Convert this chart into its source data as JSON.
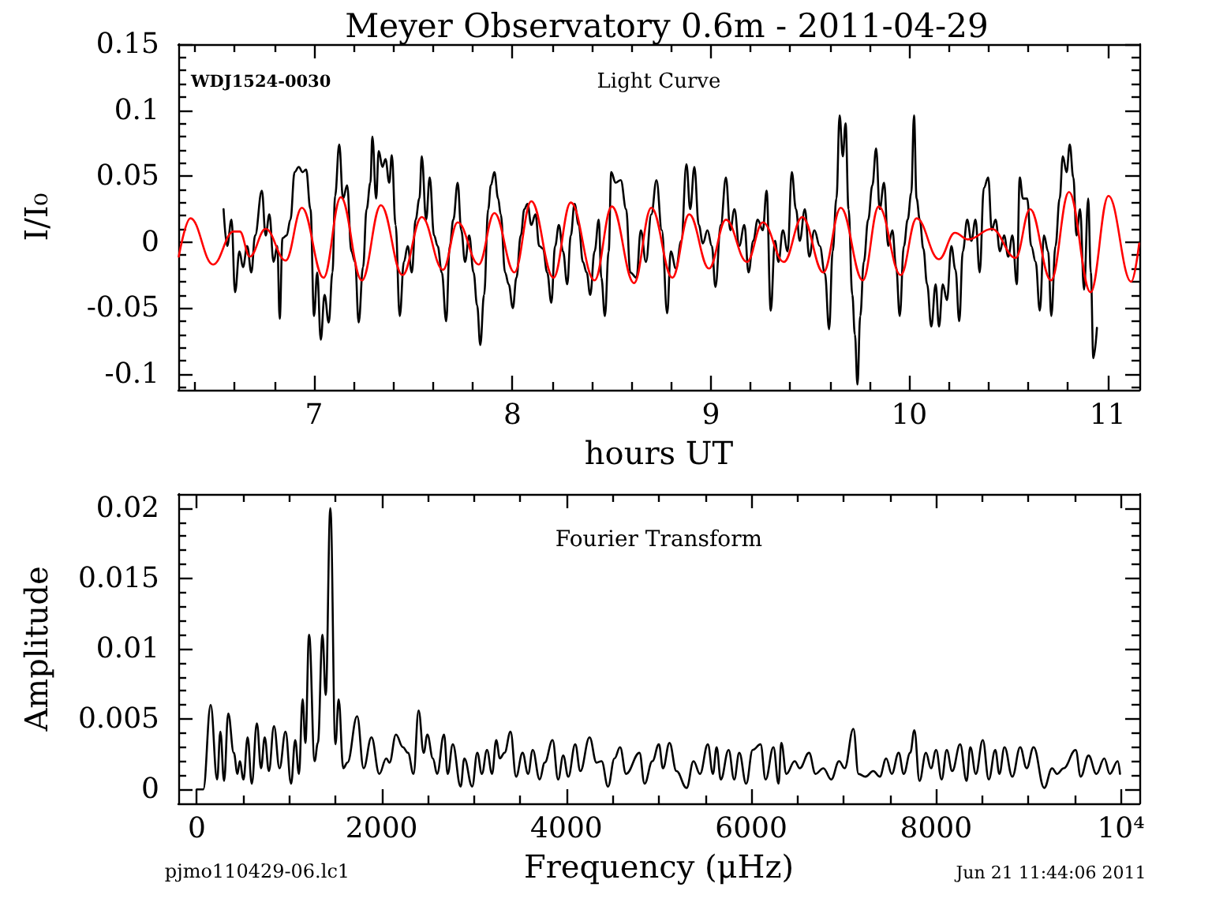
{
  "chart_data": [
    {
      "type": "line",
      "title": "Meyer Observatory 0.6m - 2011-04-29",
      "xlabel": "hours UT",
      "ylabel": "I/I₀",
      "annotations": [
        "WDJ1524-0030",
        "Light Curve"
      ],
      "xlim": [
        6.316,
        11.16
      ],
      "ylim": [
        -0.112,
        0.15
      ],
      "xticks": [
        {
          "value": 6.4,
          "label": null
        },
        {
          "value": 6.6,
          "label": null
        },
        {
          "value": 6.8,
          "label": null
        },
        7,
        {
          "value": 7.2,
          "label": null
        },
        {
          "value": 7.4,
          "label": null
        },
        {
          "value": 7.6,
          "label": null
        },
        {
          "value": 7.8,
          "label": null
        },
        8,
        {
          "value": 8.2,
          "label": null
        },
        {
          "value": 8.4,
          "label": null
        },
        {
          "value": 8.6,
          "label": null
        },
        {
          "value": 8.8,
          "label": null
        },
        9,
        {
          "value": 9.2,
          "label": null
        },
        {
          "value": 9.4,
          "label": null
        },
        {
          "value": 9.6,
          "label": null
        },
        {
          "value": 9.8,
          "label": null
        },
        10,
        {
          "value": 10.2,
          "label": null
        },
        {
          "value": 10.4,
          "label": null
        },
        {
          "value": 10.6,
          "label": null
        },
        {
          "value": 10.8,
          "label": null
        },
        11
      ],
      "yticks": [
        {
          "value": -0.11,
          "label": null
        },
        -0.1,
        {
          "value": -0.09,
          "label": null
        },
        {
          "value": -0.08,
          "label": null
        },
        {
          "value": -0.07,
          "label": null
        },
        {
          "value": -0.06,
          "label": null
        },
        -0.05,
        {
          "value": -0.04,
          "label": null
        },
        {
          "value": -0.03,
          "label": null
        },
        {
          "value": -0.02,
          "label": null
        },
        {
          "value": -0.01,
          "label": null
        },
        0,
        {
          "value": 0.01,
          "label": null
        },
        {
          "value": 0.02,
          "label": null
        },
        {
          "value": 0.03,
          "label": null
        },
        {
          "value": 0.04,
          "label": null
        },
        0.05,
        {
          "value": 0.06,
          "label": null
        },
        {
          "value": 0.07,
          "label": null
        },
        {
          "value": 0.08,
          "label": null
        },
        {
          "value": 0.09,
          "label": null
        },
        0.1,
        {
          "value": 0.11,
          "label": null
        },
        {
          "value": 0.12,
          "label": null
        },
        {
          "value": 0.13,
          "label": null
        },
        {
          "value": 0.14,
          "label": null
        },
        0.15
      ],
      "grid": false,
      "marker": "none",
      "series": [
        {
          "color": "#000000",
          "x": [
            6.544,
            6.562,
            6.584,
            6.602,
            6.624,
            6.642,
            6.663,
            6.684,
            6.703,
            6.737,
            6.756,
            6.775,
            6.796,
            6.815,
            6.827,
            6.841,
            6.862,
            6.881,
            6.902,
            6.923,
            6.942,
            6.96,
            6.982,
            7.0,
            7.016,
            7.034,
            7.053,
            7.074,
            7.093,
            7.106,
            7.127,
            7.146,
            7.167,
            7.188,
            7.207,
            7.225,
            7.247,
            7.265,
            7.284,
            7.294,
            7.313,
            7.326,
            7.345,
            7.36,
            7.379,
            7.392,
            7.411,
            7.432,
            7.453,
            7.472,
            7.493,
            7.512,
            7.531,
            7.543,
            7.565,
            7.583,
            7.605,
            7.623,
            7.644,
            7.666,
            7.684,
            7.702,
            7.724,
            7.742,
            7.761,
            7.782,
            7.804,
            7.822,
            7.838,
            7.857,
            7.878,
            7.891,
            7.909,
            7.928,
            7.941,
            7.963,
            7.981,
            8.002,
            8.02,
            8.042,
            8.06,
            8.076,
            8.095,
            8.116,
            8.135,
            8.154,
            8.175,
            8.196,
            8.215,
            8.234,
            8.255,
            8.276,
            8.294,
            8.313,
            8.334,
            8.355,
            8.374,
            8.392,
            8.414,
            8.435,
            8.448,
            8.466,
            8.485,
            8.498,
            8.52,
            8.546,
            8.573,
            8.594,
            8.625,
            8.647,
            8.673,
            8.7,
            8.726,
            8.753,
            8.78,
            8.798,
            8.824,
            8.851,
            8.877,
            8.896,
            8.917,
            8.939,
            8.96,
            8.983,
            9.005,
            9.023,
            9.05,
            9.076,
            9.098,
            9.119,
            9.143,
            9.169,
            9.19,
            9.214,
            9.236,
            9.262,
            9.281,
            9.302,
            9.323,
            9.341,
            9.363,
            9.387,
            9.408,
            9.429,
            9.448,
            9.474,
            9.496,
            9.522,
            9.549,
            9.575,
            9.596,
            9.614,
            9.633,
            9.649,
            9.665,
            9.679,
            9.694,
            9.713,
            9.726,
            9.739,
            9.753,
            9.771,
            9.793,
            9.814,
            9.833,
            9.851,
            9.873,
            9.894,
            9.915,
            9.934,
            9.952,
            9.973,
            9.992,
            10.01,
            10.024,
            10.037,
            10.053,
            10.071,
            10.09,
            10.111,
            10.133,
            10.15,
            10.169,
            10.19,
            10.212,
            10.233,
            10.252,
            10.27,
            10.292,
            10.313,
            10.334,
            10.355,
            10.376,
            10.398,
            10.416,
            10.435,
            10.457,
            10.478,
            10.499,
            10.52,
            10.542,
            10.557,
            10.573,
            10.594,
            10.615,
            10.637,
            10.658,
            10.679,
            10.7,
            10.716,
            10.737,
            10.758,
            10.774,
            10.793,
            10.809,
            10.827,
            10.843,
            10.861,
            10.881,
            10.902,
            10.915,
            10.928,
            10.946
          ],
          "values": [
            0.025,
            -0.003,
            0.017,
            -0.038,
            -0.007,
            -0.019,
            -0.003,
            -0.023,
            0.005,
            0.039,
            0.005,
            0.021,
            -0.015,
            -0.003,
            -0.058,
            0.003,
            0.005,
            0.017,
            0.053,
            0.057,
            0.053,
            0.055,
            0.025,
            -0.056,
            -0.023,
            -0.074,
            -0.04,
            -0.061,
            -0.023,
            0.035,
            0.074,
            0.033,
            0.043,
            -0.007,
            -0.015,
            -0.061,
            -0.019,
            0.025,
            0.045,
            0.08,
            0.033,
            0.069,
            0.057,
            0.063,
            0.045,
            0.066,
            0.013,
            -0.056,
            -0.015,
            -0.003,
            -0.023,
            0.017,
            0.033,
            0.065,
            0.017,
            0.049,
            0.005,
            -0.003,
            -0.023,
            -0.06,
            -0.003,
            0.017,
            0.045,
            0.009,
            -0.015,
            0.005,
            -0.023,
            -0.048,
            -0.078,
            -0.04,
            0.025,
            0.043,
            0.053,
            0.033,
            0.021,
            -0.023,
            -0.032,
            -0.05,
            -0.027,
            0.005,
            0.025,
            0.029,
            0.013,
            0.021,
            -0.003,
            -0.005,
            -0.023,
            -0.046,
            -0.003,
            0.013,
            -0.007,
            -0.032,
            0.005,
            0.029,
            0.013,
            -0.015,
            -0.023,
            -0.04,
            -0.007,
            0.017,
            -0.027,
            -0.056,
            -0.007,
            0.053,
            0.045,
            0.047,
            0.025,
            -0.023,
            -0.027,
            0.009,
            -0.015,
            0.021,
            0.047,
            0.009,
            -0.054,
            -0.007,
            -0.02,
            0.001,
            0.059,
            0.025,
            0.057,
            0.013,
            -0.001,
            0.009,
            -0.003,
            -0.034,
            0.013,
            0.049,
            0.009,
            0.025,
            -0.003,
            0.013,
            -0.023,
            0.001,
            0.017,
            0.009,
            0.039,
            -0.052,
            0.001,
            -0.015,
            0.009,
            -0.007,
            0.053,
            0.025,
            0.001,
            0.025,
            -0.011,
            0.009,
            -0.003,
            -0.024,
            -0.066,
            -0.007,
            0.033,
            0.096,
            0.065,
            0.09,
            0.025,
            -0.04,
            -0.07,
            -0.108,
            -0.056,
            -0.015,
            0.017,
            0.043,
            0.071,
            0.025,
            0.045,
            -0.003,
            0.009,
            -0.019,
            -0.056,
            -0.003,
            0.017,
            0.037,
            0.096,
            0.033,
            0.017,
            -0.005,
            -0.032,
            -0.064,
            -0.032,
            -0.064,
            -0.032,
            -0.044,
            -0.003,
            -0.021,
            -0.06,
            -0.007,
            0.017,
            0.001,
            0.017,
            -0.023,
            0.041,
            0.049,
            0.009,
            0.017,
            -0.007,
            0.005,
            -0.011,
            0.005,
            -0.032,
            0.049,
            0.033,
            0.033,
            -0.003,
            -0.015,
            -0.052,
            0.005,
            -0.007,
            -0.056,
            -0.003,
            0.033,
            0.065,
            0.053,
            0.074,
            0.049,
            0.005,
            0.025,
            -0.036,
            0.033,
            -0.023,
            -0.088,
            -0.065
          ]
        },
        {
          "color": "#ff0000",
          "x": [
            6.318,
            6.377,
            6.491,
            6.594,
            6.626,
            6.676,
            6.756,
            6.857,
            6.939,
            7.048,
            7.135,
            7.241,
            7.337,
            7.446,
            7.543,
            7.65,
            7.724,
            7.83,
            7.909,
            8.01,
            8.095,
            8.207,
            8.294,
            8.414,
            8.501,
            8.613,
            8.7,
            8.806,
            8.891,
            8.991,
            9.076,
            9.182,
            9.262,
            9.368,
            9.461,
            9.567,
            9.655,
            9.766,
            9.846,
            9.957,
            10.037,
            10.15,
            10.23,
            10.297,
            10.416,
            10.536,
            10.609,
            10.715,
            10.805,
            10.914,
            11.004,
            11.119,
            11.159
          ],
          "values": [
            -0.011,
            0.018,
            -0.017,
            0.008,
            0.008,
            -0.011,
            0.01,
            -0.014,
            0.026,
            -0.027,
            0.034,
            -0.029,
            0.028,
            -0.025,
            0.019,
            -0.021,
            0.015,
            -0.017,
            0.022,
            -0.023,
            0.031,
            -0.027,
            0.03,
            -0.029,
            0.027,
            -0.031,
            0.026,
            -0.027,
            0.021,
            -0.02,
            0.017,
            -0.015,
            0.015,
            -0.015,
            0.019,
            -0.023,
            0.026,
            -0.029,
            0.027,
            -0.025,
            0.018,
            -0.013,
            0.007,
            0.002,
            0.01,
            -0.012,
            0.025,
            -0.029,
            0.038,
            -0.038,
            0.035,
            -0.03,
            -0.001
          ]
        }
      ]
    },
    {
      "type": "line",
      "xlabel": "Frequency (μHz)",
      "ylabel": "Amplitude",
      "annotations": [
        "Fourier Transform",
        "pjmo110429-06.lc1",
        "Jun 21 11:44:06 2011"
      ],
      "xlim": [
        -200,
        10200
      ],
      "ylim": [
        -0.001,
        0.021
      ],
      "xticks": [
        0,
        {
          "value": 500,
          "label": null
        },
        {
          "value": 1000,
          "label": null
        },
        {
          "value": 1500,
          "label": null
        },
        2000,
        {
          "value": 2500,
          "label": null
        },
        {
          "value": 3000,
          "label": null
        },
        {
          "value": 3500,
          "label": null
        },
        4000,
        {
          "value": 4500,
          "label": null
        },
        {
          "value": 5000,
          "label": null
        },
        {
          "value": 5500,
          "label": null
        },
        6000,
        {
          "value": 6500,
          "label": null
        },
        {
          "value": 7000,
          "label": null
        },
        {
          "value": 7500,
          "label": null
        },
        8000,
        {
          "value": 8500,
          "label": null
        },
        {
          "value": 9000,
          "label": null
        },
        {
          "value": 9500,
          "label": null
        },
        {
          "value": 10000,
          "label": "10⁴"
        }
      ],
      "yticks": [
        0,
        {
          "value": 0.001,
          "label": null
        },
        {
          "value": 0.002,
          "label": null
        },
        {
          "value": 0.003,
          "label": null
        },
        {
          "value": 0.004,
          "label": null
        },
        0.005,
        {
          "value": 0.006,
          "label": null
        },
        {
          "value": 0.007,
          "label": null
        },
        {
          "value": 0.008,
          "label": null
        },
        {
          "value": 0.009,
          "label": null
        },
        0.01,
        {
          "value": 0.011,
          "label": null
        },
        {
          "value": 0.012,
          "label": null
        },
        {
          "value": 0.013,
          "label": null
        },
        {
          "value": 0.014,
          "label": null
        },
        0.015,
        {
          "value": 0.016,
          "label": null
        },
        {
          "value": 0.017,
          "label": null
        },
        {
          "value": 0.018,
          "label": null
        },
        {
          "value": 0.019,
          "label": null
        },
        0.02
      ],
      "grid": false,
      "marker": "none",
      "series": [
        {
          "color": "#000000",
          "x": [
            0,
            70,
            150,
            220,
            255,
            295,
            340,
            400,
            440,
            465,
            505,
            550,
            595,
            650,
            695,
            735,
            780,
            835,
            895,
            960,
            1020,
            1065,
            1105,
            1145,
            1175,
            1215,
            1275,
            1310,
            1360,
            1395,
            1445,
            1500,
            1535,
            1585,
            1630,
            1735,
            1805,
            1890,
            1975,
            2050,
            2085,
            2155,
            2230,
            2285,
            2345,
            2400,
            2455,
            2495,
            2555,
            2600,
            2675,
            2715,
            2770,
            2855,
            2895,
            2980,
            3035,
            3085,
            3140,
            3195,
            3240,
            3280,
            3330,
            3395,
            3455,
            3525,
            3585,
            3635,
            3710,
            3765,
            3850,
            3910,
            3965,
            4020,
            4095,
            4150,
            4250,
            4325,
            4380,
            4450,
            4520,
            4580,
            4645,
            4790,
            4845,
            4930,
            5000,
            5045,
            5115,
            5190,
            5300,
            5375,
            5445,
            5530,
            5585,
            5625,
            5670,
            5755,
            5815,
            5870,
            5945,
            6015,
            6100,
            6155,
            6240,
            6295,
            6325,
            6380,
            6470,
            6525,
            6625,
            6695,
            6780,
            6865,
            6950,
            7010,
            7105,
            7160,
            7235,
            7320,
            7390,
            7460,
            7520,
            7595,
            7650,
            7720,
            7765,
            7820,
            7890,
            7945,
            8000,
            8060,
            8115,
            8175,
            8260,
            8330,
            8370,
            8430,
            8505,
            8570,
            8640,
            8685,
            8740,
            8825,
            8910,
            8980,
            9055,
            9170,
            9255,
            9310,
            9380,
            9510,
            9565,
            9650,
            9735,
            9820,
            9880,
            9965,
            9990
          ],
          "values": [
            0,
            0,
            0.006,
            0.0007,
            0.0041,
            0.0006,
            0.0054,
            0.0026,
            0.0011,
            0.002,
            0.0007,
            0.0037,
            0.0004,
            0.0047,
            0.0015,
            0.0037,
            0.0013,
            0.0045,
            0.0015,
            0.0041,
            0.0004,
            0.0035,
            0.0011,
            0.0064,
            0.0033,
            0.011,
            0.002,
            0.0033,
            0.011,
            0.0067,
            0.02,
            0.0032,
            0.0064,
            0.0015,
            0.0019,
            0.0052,
            0.0015,
            0.0037,
            0.0011,
            0.0022,
            0.0019,
            0.0039,
            0.003,
            0.0026,
            0.0011,
            0.0056,
            0.0026,
            0.0039,
            0.0022,
            0.0011,
            0.0039,
            0.0011,
            0.0032,
            0.0002,
            0.0022,
            0.0002,
            0.0026,
            0.0011,
            0.0028,
            0.0011,
            0.0035,
            0.0022,
            0.0026,
            0.0041,
            0.0009,
            0.0026,
            0.0011,
            0.0028,
            0.0007,
            0.0019,
            0.0035,
            0.0007,
            0.0024,
            0.0009,
            0.0032,
            0.0013,
            0.0037,
            0.0019,
            0.002,
            0.0002,
            0.0022,
            0.003,
            0.0011,
            0.0026,
            0.0004,
            0.002,
            0.0032,
            0.0015,
            0.0033,
            0.0013,
            0.0001,
            0.002,
            0.0011,
            0.0032,
            0.0011,
            0.003,
            0.0007,
            0.0028,
            0.0007,
            0.0026,
            0.0004,
            0.0028,
            0.0032,
            0.0007,
            0.003,
            0.0004,
            0.0033,
            0.0011,
            0.002,
            0.0015,
            0.0026,
            0.0011,
            0.0015,
            0.0007,
            0.002,
            0.0015,
            0.0043,
            0.0011,
            0.0009,
            0.0013,
            0.0009,
            0.0022,
            0.0011,
            0.0026,
            0.0011,
            0.0026,
            0.0042,
            0.0006,
            0.0026,
            0.0015,
            0.0028,
            0.0007,
            0.0028,
            0.0013,
            0.0032,
            0.0006,
            0.003,
            0.0011,
            0.0035,
            0.0007,
            0.0028,
            0.0011,
            0.003,
            0.0009,
            0.003,
            0.0015,
            0.003,
            0.0001,
            0.0015,
            0.0011,
            0.0015,
            0.0028,
            0.0009,
            0.0024,
            0.0011,
            0.0022,
            0.0011,
            0.002,
            0.0011
          ]
        }
      ]
    }
  ]
}
